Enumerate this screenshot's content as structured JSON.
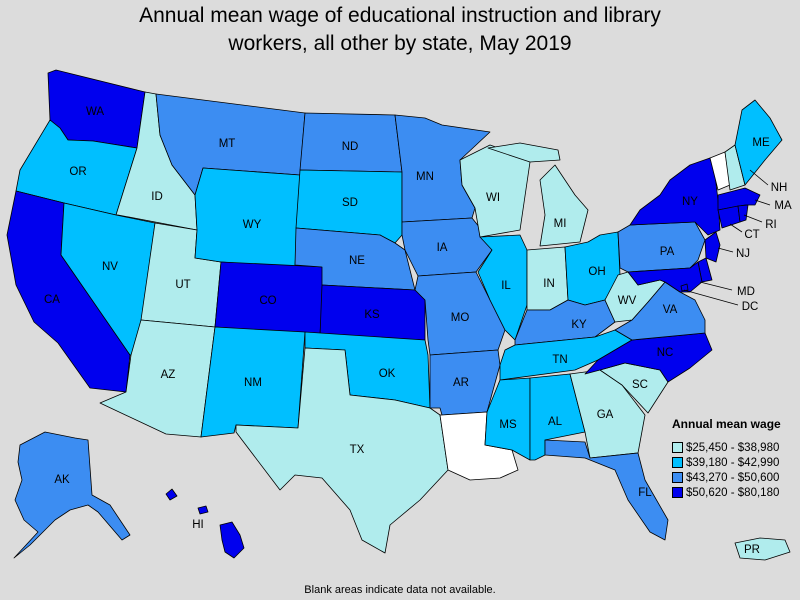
{
  "title_line1": "Annual mean wage of educational instruction and library",
  "title_line2": "workers, all other by state, May 2019",
  "legend": {
    "title": "Annual mean wage",
    "bins": [
      {
        "label": "$25,450 - $38,980",
        "color": "#b0eced"
      },
      {
        "label": "$39,180 - $42,990",
        "color": "#00bfff"
      },
      {
        "label": "$43,270 - $50,600",
        "color": "#3c8df2"
      },
      {
        "label": "$50,620 - $80,180",
        "color": "#0000ee"
      }
    ]
  },
  "no_data_color": "#ffffff",
  "footnote": "Blank areas indicate data not available.",
  "states": {
    "WA": 3,
    "OR": 1,
    "CA": 3,
    "ID": 0,
    "NV": 1,
    "UT": 0,
    "AZ": 0,
    "MT": 2,
    "WY": 1,
    "CO": 3,
    "NM": 1,
    "ND": 2,
    "SD": 1,
    "NE": 2,
    "KS": 3,
    "OK": 1,
    "TX": 0,
    "MN": 2,
    "IA": 2,
    "MO": 2,
    "AR": 2,
    "LA": null,
    "WI": 0,
    "IL": 1,
    "MI": 0,
    "IN": 0,
    "OH": 1,
    "KY": 2,
    "TN": 1,
    "MS": 1,
    "AL": 1,
    "GA": 0,
    "FL": 2,
    "SC": 0,
    "NC": 3,
    "VA": 2,
    "WV": 0,
    "PA": 2,
    "NY": 3,
    "VT": null,
    "NH": 0,
    "ME": 1,
    "MA": 3,
    "CT": 3,
    "RI": 3,
    "NJ": 3,
    "DE": 3,
    "MD": 3,
    "DC": 3,
    "AK": 2,
    "HI": 3,
    "PR": 0
  },
  "labels": {
    "WA": "WA",
    "OR": "OR",
    "CA": "CA",
    "ID": "ID",
    "NV": "NV",
    "UT": "UT",
    "AZ": "AZ",
    "MT": "MT",
    "WY": "WY",
    "CO": "CO",
    "NM": "NM",
    "ND": "ND",
    "SD": "SD",
    "NE": "NE",
    "KS": "KS",
    "OK": "OK",
    "TX": "TX",
    "MN": "MN",
    "IA": "IA",
    "MO": "MO",
    "AR": "AR",
    "WI": "WI",
    "IL": "IL",
    "MI": "MI",
    "IN": "IN",
    "OH": "OH",
    "KY": "KY",
    "TN": "TN",
    "MS": "MS",
    "AL": "AL",
    "GA": "GA",
    "FL": "FL",
    "SC": "SC",
    "NC": "NC",
    "VA": "VA",
    "WV": "WV",
    "PA": "PA",
    "NY": "NY",
    "ME": "ME",
    "NH": "NH",
    "MA": "MA",
    "RI": "RI",
    "CT": "CT",
    "NJ": "NJ",
    "MD": "MD",
    "DC": "DC",
    "AK": "AK",
    "HI": "HI",
    "PR": "PR"
  }
}
